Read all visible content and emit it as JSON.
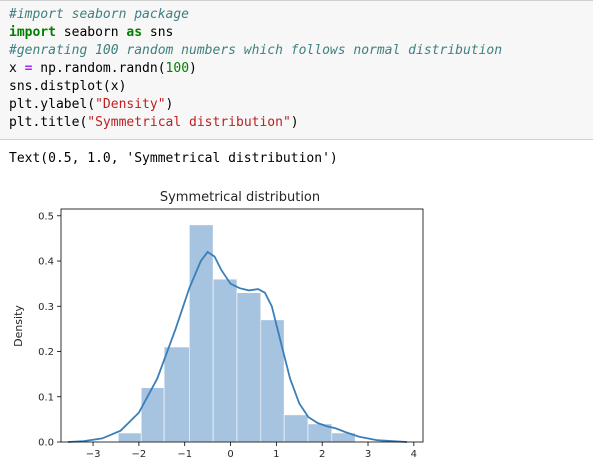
{
  "code_lines": [
    [
      {
        "t": "#import seaborn package",
        "c": "cm"
      }
    ],
    [
      {
        "t": "import",
        "c": "kw"
      },
      {
        "t": " seaborn ",
        "c": ""
      },
      {
        "t": "as",
        "c": "kw"
      },
      {
        "t": " sns",
        "c": ""
      }
    ],
    [
      {
        "t": "#genrating 100 random numbers which follows normal distribution",
        "c": "cm"
      }
    ],
    [
      {
        "t": "x ",
        "c": ""
      },
      {
        "t": "=",
        "c": "op"
      },
      {
        "t": " np.random.randn(",
        "c": ""
      },
      {
        "t": "100",
        "c": "num"
      },
      {
        "t": ")",
        "c": ""
      }
    ],
    [
      {
        "t": "sns.distplot(x)",
        "c": ""
      }
    ],
    [
      {
        "t": "plt.ylabel(",
        "c": ""
      },
      {
        "t": "\"Density\"",
        "c": "str"
      },
      {
        "t": ")",
        "c": ""
      }
    ],
    [
      {
        "t": "plt.title(",
        "c": ""
      },
      {
        "t": "\"Symmetrical distribution\"",
        "c": "str"
      },
      {
        "t": ")",
        "c": ""
      }
    ]
  ],
  "output_text": "Text(0.5, 1.0, 'Symmetrical distribution')",
  "chart_data": {
    "type": "bar",
    "title": "Symmetrical distribution",
    "xlabel": "",
    "ylabel": "Density",
    "xlim": [
      -3.7,
      4.2
    ],
    "ylim": [
      0,
      0.515
    ],
    "xticks": [
      -3,
      -2,
      -1,
      0,
      1,
      2,
      3,
      4
    ],
    "yticks": [
      0.0,
      0.1,
      0.2,
      0.3,
      0.4,
      0.5
    ],
    "ytick_labels": [
      "0.0",
      "0.1",
      "0.2",
      "0.3",
      "0.4",
      "0.5"
    ],
    "grid": false,
    "hist_color": "#a6c4e0",
    "kde_color": "#3a7fb8",
    "bins": [
      {
        "x0": -2.45,
        "x1": -1.95,
        "h": 0.02
      },
      {
        "x0": -1.95,
        "x1": -1.45,
        "h": 0.12
      },
      {
        "x0": -1.45,
        "x1": -0.9,
        "h": 0.21
      },
      {
        "x0": -0.9,
        "x1": -0.38,
        "h": 0.48
      },
      {
        "x0": -0.38,
        "x1": 0.14,
        "h": 0.36
      },
      {
        "x0": 0.14,
        "x1": 0.66,
        "h": 0.33
      },
      {
        "x0": 0.66,
        "x1": 1.17,
        "h": 0.27
      },
      {
        "x0": 1.17,
        "x1": 1.69,
        "h": 0.06
      },
      {
        "x0": 1.69,
        "x1": 2.21,
        "h": 0.04
      },
      {
        "x0": 2.21,
        "x1": 2.72,
        "h": 0.02
      }
    ],
    "kde": [
      [
        -3.55,
        0.0
      ],
      [
        -3.2,
        0.002
      ],
      [
        -2.8,
        0.008
      ],
      [
        -2.4,
        0.025
      ],
      [
        -2.0,
        0.065
      ],
      [
        -1.6,
        0.14
      ],
      [
        -1.2,
        0.25
      ],
      [
        -0.9,
        0.34
      ],
      [
        -0.65,
        0.4
      ],
      [
        -0.5,
        0.42
      ],
      [
        -0.35,
        0.41
      ],
      [
        -0.2,
        0.38
      ],
      [
        0.0,
        0.35
      ],
      [
        0.2,
        0.34
      ],
      [
        0.4,
        0.335
      ],
      [
        0.6,
        0.338
      ],
      [
        0.75,
        0.33
      ],
      [
        0.9,
        0.3
      ],
      [
        1.1,
        0.22
      ],
      [
        1.3,
        0.14
      ],
      [
        1.5,
        0.085
      ],
      [
        1.7,
        0.055
      ],
      [
        1.9,
        0.042
      ],
      [
        2.1,
        0.035
      ],
      [
        2.3,
        0.03
      ],
      [
        2.5,
        0.022
      ],
      [
        2.8,
        0.012
      ],
      [
        3.2,
        0.004
      ],
      [
        3.85,
        0.0
      ]
    ]
  }
}
